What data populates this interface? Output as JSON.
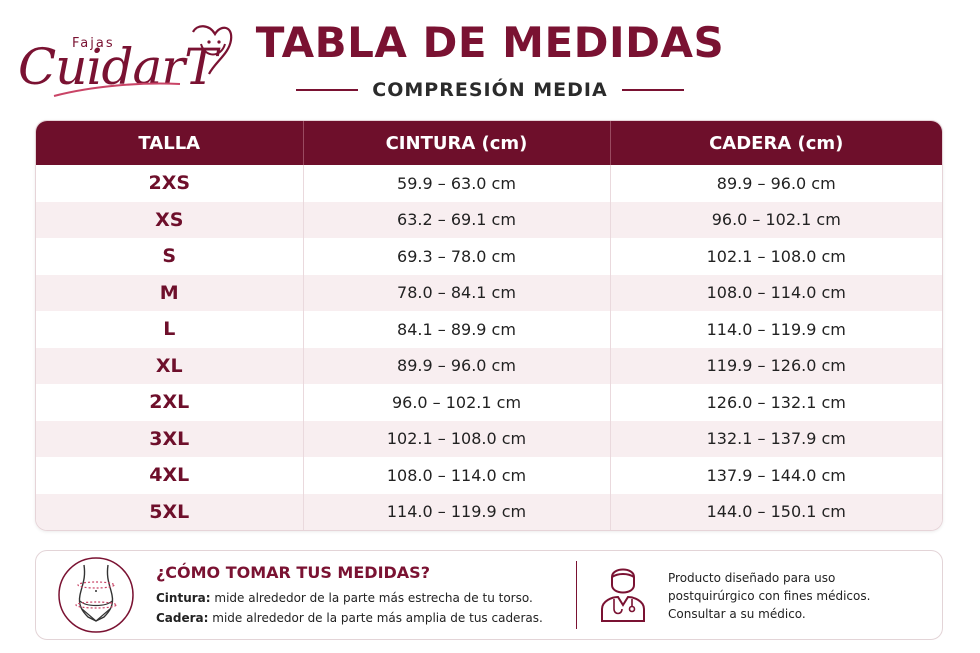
{
  "brand": {
    "small": "Fajas",
    "name": "CuidarT",
    "accent_color": "#7a1232"
  },
  "header": {
    "title": "TABLA DE MEDIDAS",
    "subtitle": "COMPRESIÓN MEDIA"
  },
  "table": {
    "columns": [
      "TALLA",
      "CINTURA (cm)",
      "CADERA (cm)"
    ],
    "rows": [
      {
        "size": "2XS",
        "waist": "59.9 – 63.0 cm",
        "hip": "89.9 – 96.0 cm"
      },
      {
        "size": "XS",
        "waist": "63.2 – 69.1 cm",
        "hip": "96.0 – 102.1 cm"
      },
      {
        "size": "S",
        "waist": "69.3 – 78.0 cm",
        "hip": "102.1 – 108.0 cm"
      },
      {
        "size": "M",
        "waist": "78.0 – 84.1 cm",
        "hip": "108.0 – 114.0 cm"
      },
      {
        "size": "L",
        "waist": "84.1 – 89.9 cm",
        "hip": "114.0 – 119.9 cm"
      },
      {
        "size": "XL",
        "waist": "89.9 – 96.0 cm",
        "hip": "119.9 – 126.0 cm"
      },
      {
        "size": "2XL",
        "waist": "96.0 – 102.1 cm",
        "hip": "126.0 – 132.1 cm"
      },
      {
        "size": "3XL",
        "waist": "102.1 – 108.0 cm",
        "hip": "132.1 – 137.9 cm"
      },
      {
        "size": "4XL",
        "waist": "108.0 – 114.0 cm",
        "hip": "137.9 – 144.0 cm"
      },
      {
        "size": "5XL",
        "waist": "114.0 – 119.9 cm",
        "hip": "144.0 – 150.1 cm"
      }
    ]
  },
  "footer": {
    "how_title": "¿CÓMO TOMAR TUS MEDIDAS?",
    "waist_label": "Cintura:",
    "waist_text": "mide alrededor de la parte más estrecha de tu torso.",
    "hip_label": "Cadera:",
    "hip_text": "mide alrededor de la parte más amplia de tus caderas.",
    "disclaimer_lines": [
      "Producto diseñado para uso",
      "postquirúrgico con fines médicos.",
      "Consultar a su médico."
    ],
    "body_icon": "body-measure-icon",
    "doctor_icon": "doctor-icon"
  }
}
